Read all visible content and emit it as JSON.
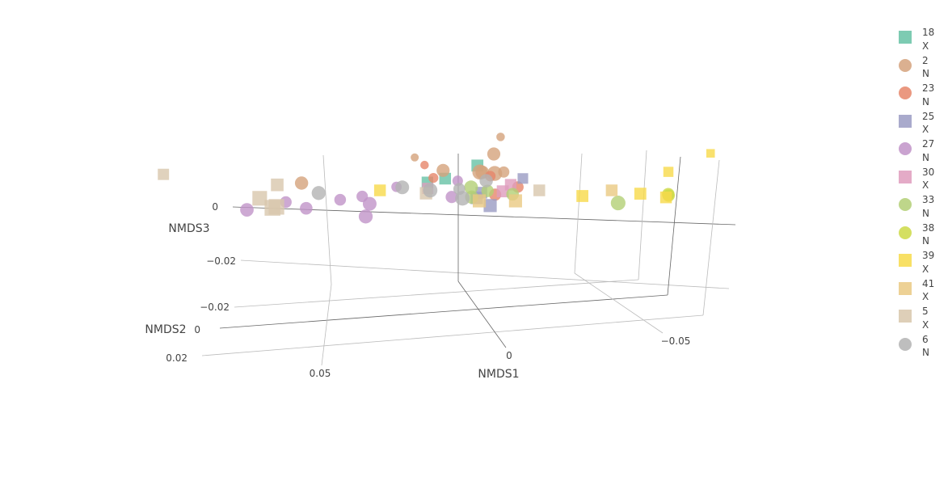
{
  "chart_data": {
    "type": "scatter3d",
    "axes": {
      "x": {
        "title": "NMDS1",
        "ticks": [
          "0.05",
          "0",
          "−0.05"
        ]
      },
      "y": {
        "title": "NMDS2",
        "ticks": [
          "0.02",
          "0",
          "−0.02"
        ]
      },
      "z": {
        "title": "NMDS3",
        "ticks": [
          "0",
          "−0.02"
        ]
      }
    },
    "legend": {
      "placement": "right",
      "entries": [
        {
          "line1": "18",
          "line2": "X",
          "symbol": "square",
          "color": "#66c2a5"
        },
        {
          "line1": "2",
          "line2": "N",
          "symbol": "circle",
          "color": "#d5a27c"
        },
        {
          "line1": "23",
          "line2": "N",
          "symbol": "circle",
          "color": "#e6866a"
        },
        {
          "line1": "25",
          "line2": "X",
          "symbol": "square",
          "color": "#9a9bc3"
        },
        {
          "line1": "27",
          "line2": "N",
          "symbol": "circle",
          "color": "#c193c8"
        },
        {
          "line1": "30",
          "line2": "X",
          "symbol": "square",
          "color": "#df9cbd"
        },
        {
          "line1": "33",
          "line2": "N",
          "symbol": "circle",
          "color": "#b3cf76"
        },
        {
          "line1": "38",
          "line2": "N",
          "symbol": "circle",
          "color": "#cdd945"
        },
        {
          "line1": "39",
          "line2": "X",
          "symbol": "square",
          "color": "#f7da4a"
        },
        {
          "line1": "41",
          "line2": "X",
          "symbol": "square",
          "color": "#eac982"
        },
        {
          "line1": "5",
          "line2": "X",
          "symbol": "square",
          "color": "#d8c7ac"
        },
        {
          "line1": "6",
          "line2": "N",
          "symbol": "circle",
          "color": "#b3b3b3"
        }
      ]
    },
    "points": [
      {
        "group": "18",
        "x": 0.011,
        "y": -0.005,
        "z": -0.001
      },
      {
        "group": "18",
        "x": 0.006,
        "y": -0.004,
        "z": -0.004
      },
      {
        "group": "18",
        "x": -0.003,
        "y": -0.003,
        "z": -0.011
      },
      {
        "group": "2",
        "x": 0.045,
        "y": 0.003,
        "z": -0.012
      },
      {
        "group": "2",
        "x": 0.016,
        "y": -0.021,
        "z": 0.011
      },
      {
        "group": "2",
        "x": -0.008,
        "y": -0.018,
        "z": -0.002
      },
      {
        "group": "2",
        "x": -0.01,
        "y": -0.006,
        "z": -0.004
      },
      {
        "group": "2",
        "x": -0.005,
        "y": 0.004,
        "z": -0.018
      },
      {
        "group": "2",
        "x": -0.008,
        "y": 0.002,
        "z": -0.023
      },
      {
        "group": "2",
        "x": -0.009,
        "y": 0.01,
        "z": -0.026
      },
      {
        "group": "2",
        "x": -0.005,
        "y": 0.011,
        "z": -0.028
      },
      {
        "group": "2",
        "x": 0.006,
        "y": 0.002,
        "z": -0.016
      },
      {
        "group": "23",
        "x": 0.013,
        "y": -0.018,
        "z": 0.01
      },
      {
        "group": "23",
        "x": 0.01,
        "y": -0.012,
        "z": 0.007
      },
      {
        "group": "23",
        "x": -0.006,
        "y": -0.009,
        "z": 0.002
      },
      {
        "group": "23",
        "x": -0.008,
        "y": -0.002,
        "z": 0.0
      },
      {
        "group": "23",
        "x": -0.014,
        "y": -0.005,
        "z": 0.001
      },
      {
        "group": "25",
        "x": -0.004,
        "y": -0.004,
        "z": 0.002
      },
      {
        "group": "25",
        "x": -0.003,
        "y": -0.001,
        "z": 0.0
      },
      {
        "group": "25",
        "x": -0.015,
        "y": -0.009,
        "z": 0.003
      },
      {
        "group": "25",
        "x": -0.007,
        "y": 0.002,
        "z": -0.001
      },
      {
        "group": "27",
        "x": 0.05,
        "y": -0.004,
        "z": 0.006
      },
      {
        "group": "27",
        "x": 0.044,
        "y": 0.0,
        "z": 0.003
      },
      {
        "group": "27",
        "x": 0.035,
        "y": -0.004,
        "z": 0.005
      },
      {
        "group": "27",
        "x": 0.029,
        "y": -0.005,
        "z": 0.005
      },
      {
        "group": "27",
        "x": 0.02,
        "y": -0.01,
        "z": 0.008
      },
      {
        "group": "27",
        "x": 0.027,
        "y": 0.006,
        "z": -0.002
      },
      {
        "group": "27",
        "x": 0.026,
        "y": 0.005,
        "z": -0.006
      },
      {
        "group": "27",
        "x": 0.003,
        "y": -0.009,
        "z": 0.004
      },
      {
        "group": "27",
        "x": 0.004,
        "y": -0.002,
        "z": 0.001
      },
      {
        "group": "27",
        "x": 0.06,
        "y": 0.004,
        "z": -0.002
      },
      {
        "group": "30",
        "x": 0.011,
        "y": -0.006,
        "z": 0.003
      },
      {
        "group": "30",
        "x": -0.012,
        "y": -0.005,
        "z": 0.0
      },
      {
        "group": "30",
        "x": -0.01,
        "y": -0.003,
        "z": 0.0
      },
      {
        "group": "33",
        "x": -0.002,
        "y": 0.003,
        "z": -0.006
      },
      {
        "group": "33",
        "x": -0.002,
        "y": 0.005,
        "z": -0.013
      },
      {
        "group": "33",
        "x": -0.006,
        "y": -0.001,
        "z": -0.003
      },
      {
        "group": "33",
        "x": -0.013,
        "y": 0.0,
        "z": -0.003
      },
      {
        "group": "33",
        "x": -0.043,
        "y": 0.009,
        "z": -0.012
      },
      {
        "group": "38",
        "x": -0.056,
        "y": 0.0,
        "z": -0.003
      },
      {
        "group": "38",
        "x": -0.056,
        "y": -0.001,
        "z": -0.001
      },
      {
        "group": "39",
        "x": 0.024,
        "y": -0.004,
        "z": 0.001
      },
      {
        "group": "39",
        "x": -0.032,
        "y": -0.003,
        "z": 0.002
      },
      {
        "group": "39",
        "x": -0.055,
        "y": -0.004,
        "z": 0.004
      },
      {
        "group": "39",
        "x": -0.055,
        "y": -0.011,
        "z": 0.003
      },
      {
        "group": "39",
        "x": -0.048,
        "y": -0.003,
        "z": 0.001
      },
      {
        "group": "39",
        "x": -0.066,
        "y": -0.018,
        "z": 0.005
      },
      {
        "group": "41",
        "x": -0.004,
        "y": 0.002,
        "z": -0.003
      },
      {
        "group": "41",
        "x": -0.014,
        "y": 0.002,
        "z": -0.003
      },
      {
        "group": "41",
        "x": -0.04,
        "y": -0.004,
        "z": 0.001
      },
      {
        "group": "5",
        "x": 0.084,
        "y": -0.006,
        "z": -0.003
      },
      {
        "group": "5",
        "x": 0.052,
        "y": 0.0,
        "z": -0.007
      },
      {
        "group": "5",
        "x": 0.056,
        "y": 0.009,
        "z": -0.014
      },
      {
        "group": "5",
        "x": 0.052,
        "y": 0.014,
        "z": -0.017
      },
      {
        "group": "5",
        "x": 0.051,
        "y": 0.013,
        "z": -0.016
      },
      {
        "group": "5",
        "x": 0.011,
        "y": -0.001,
        "z": -0.002
      },
      {
        "group": "5",
        "x": -0.02,
        "y": -0.004,
        "z": 0.001
      },
      {
        "group": "6",
        "x": 0.04,
        "y": 0.006,
        "z": -0.012
      },
      {
        "group": "6",
        "x": 0.017,
        "y": 0.005,
        "z": -0.013
      },
      {
        "group": "6",
        "x": 0.009,
        "y": 0.008,
        "z": -0.016
      },
      {
        "group": "6",
        "x": 0.0,
        "y": 0.009,
        "z": -0.014
      },
      {
        "group": "6",
        "x": -0.006,
        "y": 0.003,
        "z": -0.013
      },
      {
        "group": "6",
        "x": 0.002,
        "y": -0.003,
        "z": -0.001
      }
    ]
  }
}
